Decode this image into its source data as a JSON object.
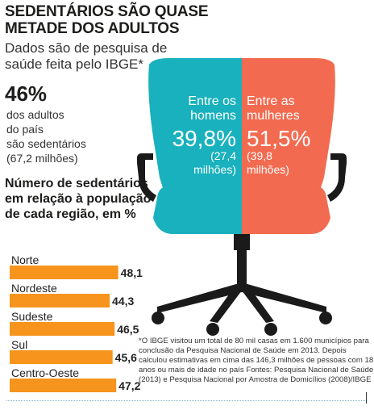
{
  "header": {
    "title": "SEDENTÁRIOS SÃO QUASE METADE DOS ADULTOS",
    "subtitle": "Dados são de pesquisa de saúde feita pelo IBGE*"
  },
  "adults": {
    "percent": "46%",
    "line1": "dos adultos",
    "line2": "do país",
    "line3": "são sedentários",
    "line4": "(67,2 milhões)"
  },
  "chair": {
    "men": {
      "label1": "Entre os",
      "label2": "homens",
      "percent": "39,8%",
      "count1": "(27,4",
      "count2": "milhões)"
    },
    "women": {
      "label1": "Entre as",
      "label2": "mulheres",
      "percent": "51,5%",
      "count1": "(39,8",
      "count2": "milhões)"
    },
    "colors": {
      "men": "#19b1bd",
      "women": "#f26b50",
      "frame": "#1a1a1a"
    }
  },
  "chart_data": {
    "type": "bar",
    "title": "Número de sedentários em relação à população de cada região, em %",
    "categories": [
      "Norte",
      "Nordeste",
      "Sudeste",
      "Sul",
      "Centro-Oeste"
    ],
    "values": [
      48.1,
      44.3,
      46.5,
      45.6,
      47.2
    ],
    "value_labels": [
      "48,1",
      "44,3",
      "46,5",
      "45,6",
      "47,2"
    ],
    "bar_color": "#f7941d",
    "orientation": "horizontal"
  },
  "footnote": "*O IBGE visitou um total de 80 mil casas em 1.600 municípios para conclusão da Pesquisa Nacional de Saúde em 2013. Depois calculou estimativas em cima das 146,3 milhões de pessoas com 18 anos ou mais de idade no país Fontes: Pesquisa Nacional de Saúde (2013) e Pesquisa Nacional por Amostra de Domicílios (2008)/IBGE"
}
